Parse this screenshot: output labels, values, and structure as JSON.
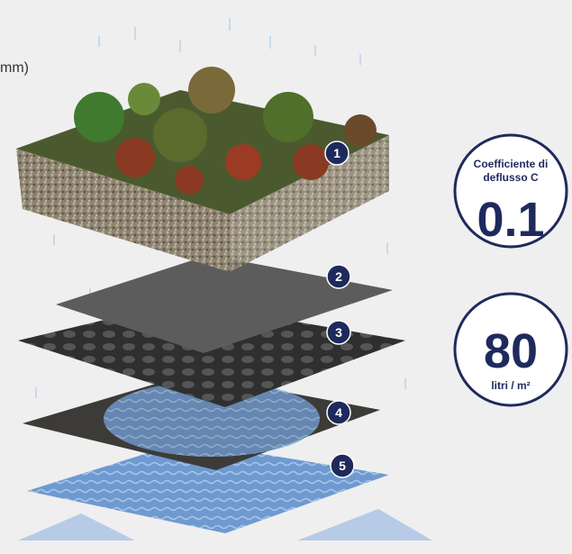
{
  "caption_fragment": "mm)",
  "layers": [
    {
      "number": "1"
    },
    {
      "number": "2"
    },
    {
      "number": "3"
    },
    {
      "number": "4"
    },
    {
      "number": "5"
    }
  ],
  "badges": [
    {
      "label": "Coefficiente di deflusso C",
      "value": "0.1"
    },
    {
      "value": "80",
      "unit": "litri / m²"
    }
  ]
}
